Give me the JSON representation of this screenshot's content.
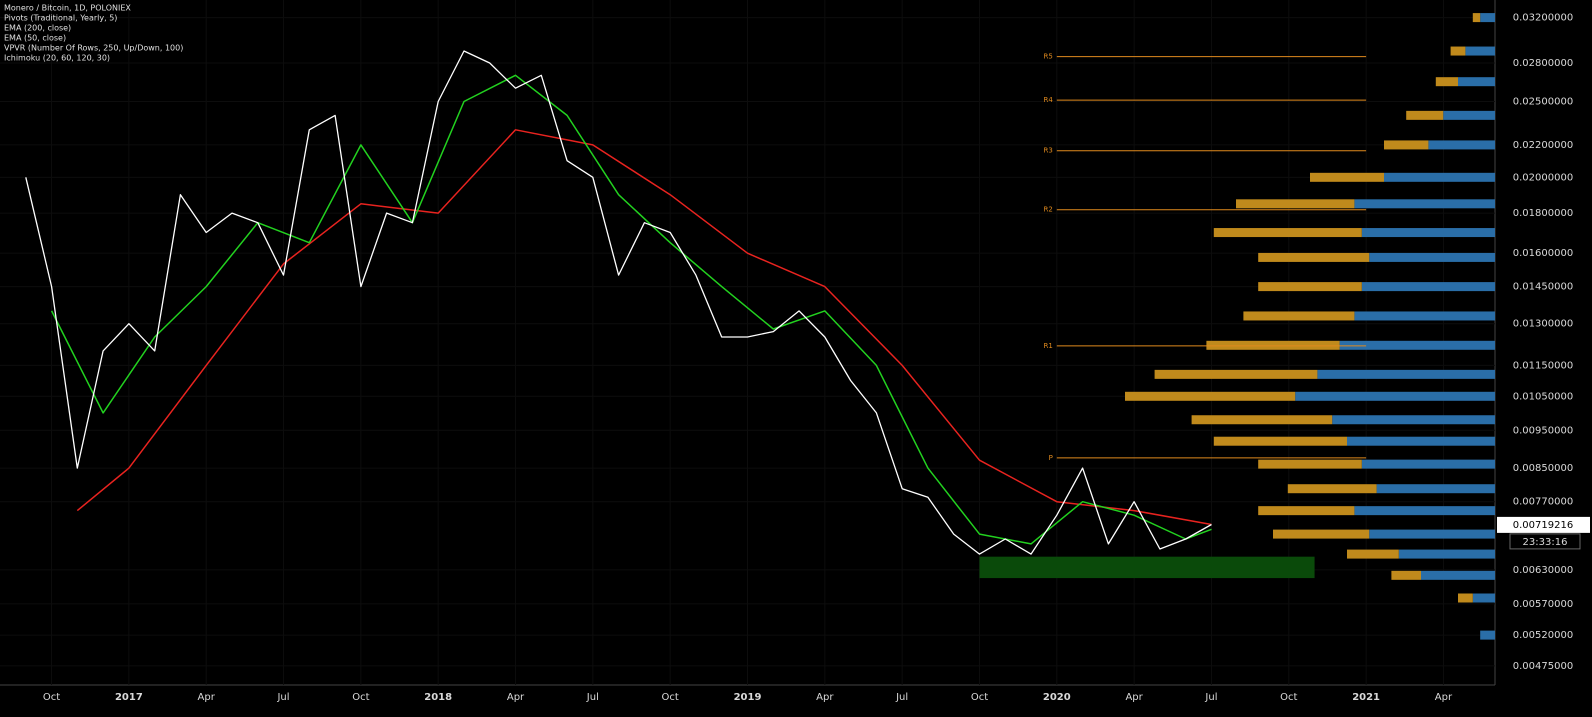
{
  "chart_data": {
    "type": "line",
    "title": "Monero / Bitcoin, 1D, POLONIEX",
    "indicators": [
      "Pivots (Traditional, Yearly, 5)",
      "VPVR (Number Of Rows, 250, Up/Down, 100)",
      "Ichimoku (20, 60, 120, 30)"
    ],
    "log_scale": true,
    "color": "#ffffff",
    "x": [
      "2016-09",
      "2016-10",
      "2016-11",
      "2016-12",
      "2017-01",
      "2017-02",
      "2017-03",
      "2017-04",
      "2017-05",
      "2017-06",
      "2017-07",
      "2017-08",
      "2017-09",
      "2017-10",
      "2017-11",
      "2017-12",
      "2018-01",
      "2018-02",
      "2018-03",
      "2018-04",
      "2018-05",
      "2018-06",
      "2018-07",
      "2018-08",
      "2018-09",
      "2018-10",
      "2018-11",
      "2018-12",
      "2019-01",
      "2019-02",
      "2019-03",
      "2019-04",
      "2019-05",
      "2019-06",
      "2019-07",
      "2019-08",
      "2019-09",
      "2019-10",
      "2019-11",
      "2019-12",
      "2020-01",
      "2020-02",
      "2020-03",
      "2020-04",
      "2020-05",
      "2020-06",
      "2020-07"
    ],
    "values": [
      0.02,
      0.0145,
      0.0085,
      0.012,
      0.013,
      0.012,
      0.019,
      0.017,
      0.018,
      0.0175,
      0.015,
      0.023,
      0.024,
      0.0145,
      0.018,
      0.0175,
      0.025,
      0.029,
      0.028,
      0.026,
      0.027,
      0.021,
      0.02,
      0.015,
      0.0175,
      0.017,
      0.015,
      0.0125,
      0.0125,
      0.0127,
      0.0135,
      0.0125,
      0.011,
      0.01,
      0.008,
      0.0078,
      0.007,
      0.0066,
      0.0069,
      0.0066,
      0.0074,
      0.0085,
      0.0068,
      0.0077,
      0.0067,
      0.0069,
      0.0072
    ],
    "series": [
      {
        "name": "EMA (200, close)",
        "color": "#e8231f",
        "x": [
          "2016-11",
          "2017-01",
          "2017-04",
          "2017-07",
          "2017-10",
          "2018-01",
          "2018-04",
          "2018-07",
          "2018-10",
          "2019-01",
          "2019-04",
          "2019-07",
          "2019-10",
          "2020-01",
          "2020-04",
          "2020-07"
        ],
        "values": [
          0.0075,
          0.0085,
          0.0115,
          0.0155,
          0.0185,
          0.018,
          0.023,
          0.022,
          0.019,
          0.016,
          0.0145,
          0.0115,
          0.0087,
          0.0077,
          0.0075,
          0.0072
        ]
      },
      {
        "name": "EMA (50, close)",
        "color": "#22d11f",
        "x": [
          "2016-10",
          "2016-12",
          "2017-02",
          "2017-04",
          "2017-06",
          "2017-08",
          "2017-10",
          "2017-12",
          "2018-02",
          "2018-04",
          "2018-06",
          "2018-08",
          "2018-10",
          "2018-12",
          "2019-02",
          "2019-04",
          "2019-06",
          "2019-08",
          "2019-10",
          "2019-12",
          "2020-02",
          "2020-04",
          "2020-06",
          "2020-07"
        ],
        "values": [
          0.0135,
          0.01,
          0.0125,
          0.0145,
          0.0175,
          0.0165,
          0.022,
          0.0175,
          0.025,
          0.027,
          0.024,
          0.019,
          0.0165,
          0.0145,
          0.0128,
          0.0135,
          0.0115,
          0.0085,
          0.007,
          0.0068,
          0.0077,
          0.0074,
          0.0069,
          0.0071
        ]
      }
    ],
    "pivots": {
      "from": "2020-01",
      "to": "2021-01",
      "color": "#e08a1e",
      "levels": [
        {
          "label": "R5",
          "value": 0.02853
        },
        {
          "label": "R4",
          "value": 0.0251
        },
        {
          "label": "R3",
          "value": 0.02163
        },
        {
          "label": "R2",
          "value": 0.01818
        },
        {
          "label": "R1",
          "value": 0.01218
        },
        {
          "label": "P",
          "value": 0.00876
        }
      ]
    },
    "support_zone": {
      "from": "2019-10",
      "to": "2020-11",
      "range": [
        0.00615,
        0.00655
      ],
      "color": "#0a4a0a"
    },
    "volume_profile": {
      "up_color": "#2a6ea8",
      "down_color": "#c08a1c",
      "prices": [
        0.032,
        0.029,
        0.0265,
        0.024,
        0.022,
        0.02,
        0.0185,
        0.017,
        0.0158,
        0.0145,
        0.0133,
        0.0122,
        0.0112,
        0.0105,
        0.0098,
        0.0092,
        0.0086,
        0.008,
        0.0075,
        0.007,
        0.0066,
        0.0062,
        0.0058,
        0.0052
      ],
      "up": [
        4,
        8,
        10,
        14,
        18,
        30,
        38,
        36,
        34,
        36,
        38,
        42,
        48,
        54,
        44,
        40,
        36,
        32,
        38,
        34,
        26,
        20,
        6,
        4
      ],
      "down": [
        2,
        4,
        6,
        10,
        12,
        20,
        32,
        40,
        30,
        28,
        30,
        36,
        44,
        46,
        38,
        36,
        28,
        24,
        26,
        26,
        14,
        8,
        4,
        0
      ]
    },
    "last_price": {
      "value": 0.00719216,
      "label": "0.00719216"
    },
    "countdown": "23:33:16",
    "xlim": [
      "2016-08",
      "2021-06"
    ],
    "ylim": [
      0.00449,
      0.0337
    ],
    "xticks": [
      {
        "value": "2016-10",
        "label": "Oct"
      },
      {
        "value": "2017-01",
        "label": "2017"
      },
      {
        "value": "2017-04",
        "label": "Apr"
      },
      {
        "value": "2017-07",
        "label": "Jul"
      },
      {
        "value": "2017-10",
        "label": "Oct"
      },
      {
        "value": "2018-01",
        "label": "2018"
      },
      {
        "value": "2018-04",
        "label": "Apr"
      },
      {
        "value": "2018-07",
        "label": "Jul"
      },
      {
        "value": "2018-10",
        "label": "Oct"
      },
      {
        "value": "2019-01",
        "label": "2019"
      },
      {
        "value": "2019-04",
        "label": "Apr"
      },
      {
        "value": "2019-07",
        "label": "Jul"
      },
      {
        "value": "2019-10",
        "label": "Oct"
      },
      {
        "value": "2020-01",
        "label": "2020"
      },
      {
        "value": "2020-04",
        "label": "Apr"
      },
      {
        "value": "2020-07",
        "label": "Jul"
      },
      {
        "value": "2020-10",
        "label": "Oct"
      },
      {
        "value": "2021-01",
        "label": "2021"
      },
      {
        "value": "2021-04",
        "label": "Apr"
      }
    ],
    "yticks": [
      {
        "value": 0.032,
        "label": "0.03200000"
      },
      {
        "value": 0.028,
        "label": "0.02800000"
      },
      {
        "value": 0.025,
        "label": "0.02500000"
      },
      {
        "value": 0.022,
        "label": "0.02200000"
      },
      {
        "value": 0.02,
        "label": "0.02000000"
      },
      {
        "value": 0.018,
        "label": "0.01800000"
      },
      {
        "value": 0.016,
        "label": "0.01600000"
      },
      {
        "value": 0.0145,
        "label": "0.01450000"
      },
      {
        "value": 0.013,
        "label": "0.01300000"
      },
      {
        "value": 0.0115,
        "label": "0.01150000"
      },
      {
        "value": 0.0105,
        "label": "0.01050000"
      },
      {
        "value": 0.0095,
        "label": "0.00950000"
      },
      {
        "value": 0.0085,
        "label": "0.00850000"
      },
      {
        "value": 0.0077,
        "label": "0.00770000"
      },
      {
        "value": 0.0063,
        "label": "0.00630000"
      },
      {
        "value": 0.0057,
        "label": "0.00570000"
      },
      {
        "value": 0.0052,
        "label": "0.00520000"
      },
      {
        "value": 0.00475,
        "label": "0.00475000"
      }
    ]
  }
}
